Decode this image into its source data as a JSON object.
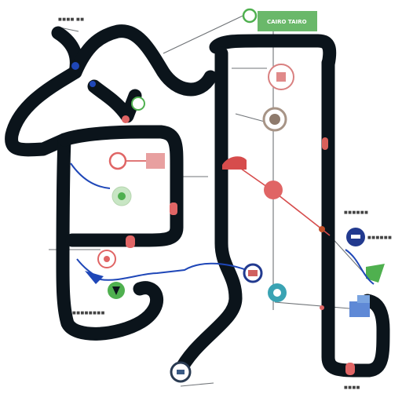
{
  "diagram": {
    "kind": "transit-style route map (illegible, stylized)",
    "colors": {
      "track": "#0b141b",
      "blue_line": "#1f47b8",
      "red_line": "#d64c4c",
      "thin_line": "#6f7377",
      "green": "#4fb04f",
      "red_node": "#e06565",
      "gray_node": "#a79486",
      "navy_node": "#223a8f",
      "teal_node": "#3aa3b3"
    },
    "labels": {
      "top_right_tag": "CAIRO TAIRO",
      "top_left_note": "■■■■ ■■",
      "right_mid_note": "■■■■■■",
      "navy_label": "■■■■■■",
      "bottom_left_note": "■■■■■■■■",
      "bottom_right_note": "■■■■"
    },
    "nodes": [
      {
        "id": "n_top_green",
        "icon": "green-station-icon"
      },
      {
        "id": "n_red_ring",
        "icon": "red-station-icon"
      },
      {
        "id": "n_gray_ring",
        "icon": "gray-station-icon"
      },
      {
        "id": "n_green_small",
        "icon": "green-station-icon"
      },
      {
        "id": "n_red_left",
        "icon": "red-station-icon"
      },
      {
        "id": "n_green_left",
        "icon": "green-station-icon"
      },
      {
        "id": "n_red_center",
        "icon": "red-station-icon"
      },
      {
        "id": "n_red_lowleft",
        "icon": "red-station-icon"
      },
      {
        "id": "n_green_lowleft",
        "icon": "green-station-icon"
      },
      {
        "id": "n_navy_mid",
        "icon": "navy-station-icon"
      },
      {
        "id": "n_teal",
        "icon": "teal-station-icon"
      },
      {
        "id": "n_navy_right",
        "icon": "navy-station-icon"
      },
      {
        "id": "n_bottom",
        "icon": "bottom-station-icon"
      }
    ]
  }
}
